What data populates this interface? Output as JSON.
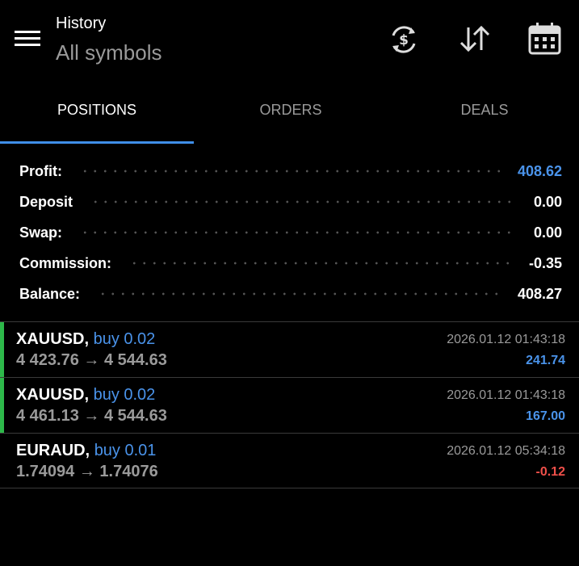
{
  "header": {
    "title": "History",
    "subtitle": "All symbols"
  },
  "tabs": [
    "POSITIONS",
    "ORDERS",
    "DEALS"
  ],
  "summary": [
    {
      "label": "Profit:",
      "value": "408.62"
    },
    {
      "label": "Deposit",
      "value": "0.00"
    },
    {
      "label": "Swap:",
      "value": "0.00"
    },
    {
      "label": "Commission:",
      "value": "-0.35"
    },
    {
      "label": "Balance:",
      "value": "408.27"
    }
  ],
  "positions": [
    {
      "symbol": "XAUUSD,",
      "side": "buy 0.02",
      "prices": "4 423.76 → 4 544.63",
      "time": "2026.01.12 01:43:18",
      "profit": "241.74"
    },
    {
      "symbol": "XAUUSD,",
      "side": "buy 0.02",
      "prices": "4 461.13 → 4 544.63",
      "time": "2026.01.12 01:43:18",
      "profit": "167.00"
    },
    {
      "symbol": "EURAUD,",
      "side": "buy 0.01",
      "prices": "1.74094 → 1.74076",
      "time": "2026.01.12 05:34:18",
      "profit": "-0.12"
    }
  ]
}
